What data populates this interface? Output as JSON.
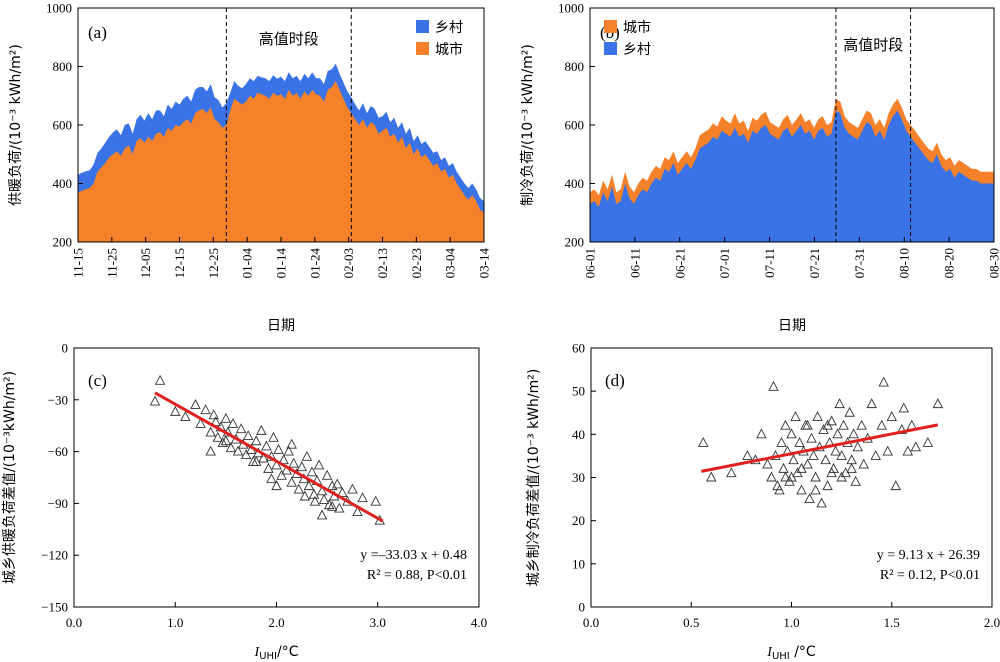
{
  "colors": {
    "urban": "#F5822A",
    "rural": "#3A73E6",
    "fit": "#E01F1F",
    "marker": "#333333"
  },
  "chart_data": [
    {
      "id": "a",
      "type": "area",
      "panel_label": "(a)",
      "xlabel": "日期",
      "ylabel": "供暖负荷/(10⁻³ kWh/m²)",
      "ylim": [
        200,
        1000
      ],
      "yticks": [
        200,
        400,
        600,
        800,
        1000
      ],
      "stack_order": [
        "城市",
        "乡村"
      ],
      "legend_items": [
        {
          "label": "乡村",
          "color_key": "rural"
        },
        {
          "label": "城市",
          "color_key": "urban"
        }
      ],
      "tick_labels": [
        "11-15",
        "11-25",
        "12-05",
        "12-15",
        "12-25",
        "01-04",
        "01-14",
        "01-24",
        "02-03",
        "02-13",
        "02-23",
        "03-04",
        "03-14"
      ],
      "annotation": "高值时段",
      "peak_start_index": 38,
      "peak_end_index": 70,
      "series": [
        {
          "name": "城市",
          "values": [
            370,
            375,
            380,
            385,
            400,
            440,
            455,
            470,
            490,
            500,
            510,
            495,
            520,
            530,
            500,
            545,
            555,
            540,
            560,
            545,
            570,
            575,
            560,
            590,
            580,
            600,
            595,
            610,
            620,
            605,
            640,
            650,
            655,
            640,
            660,
            620,
            610,
            590,
            600,
            650,
            690,
            680,
            670,
            680,
            700,
            690,
            710,
            705,
            700,
            690,
            710,
            700,
            705,
            690,
            720,
            700,
            710,
            690,
            715,
            700,
            720,
            705,
            700,
            680,
            720,
            730,
            750,
            720,
            690,
            660,
            640,
            620,
            600,
            620,
            590,
            610,
            600,
            570,
            580,
            590,
            560,
            570,
            540,
            560,
            520,
            540,
            500,
            520,
            490,
            500,
            480,
            460,
            470,
            440,
            450,
            420,
            430,
            400,
            380,
            360,
            345,
            360,
            340,
            310,
            300
          ]
        },
        {
          "name": "乡村",
          "values": [
            60,
            62,
            62,
            60,
            65,
            65,
            65,
            70,
            70,
            75,
            75,
            70,
            80,
            75,
            70,
            75,
            80,
            75,
            80,
            75,
            80,
            75,
            70,
            80,
            75,
            80,
            75,
            80,
            80,
            75,
            80,
            80,
            75,
            75,
            80,
            75,
            75,
            70,
            75,
            60,
            60,
            55,
            55,
            60,
            60,
            60,
            58,
            58,
            60,
            60,
            60,
            58,
            60,
            60,
            60,
            60,
            58,
            60,
            60,
            60,
            60,
            55,
            60,
            60,
            65,
            60,
            60,
            55,
            55,
            55,
            55,
            50,
            50,
            55,
            50,
            55,
            55,
            55,
            50,
            55,
            50,
            55,
            50,
            50,
            50,
            50,
            45,
            45,
            45,
            45,
            45,
            45,
            40,
            40,
            40,
            40,
            40,
            40,
            40,
            40,
            40,
            40,
            40,
            40,
            40
          ]
        }
      ]
    },
    {
      "id": "b",
      "type": "area",
      "panel_label": "(b)",
      "xlabel": "日期",
      "ylabel": "制冷负荷/(10⁻³ kWh/m²)",
      "ylim": [
        200,
        1000
      ],
      "yticks": [
        200,
        400,
        600,
        800,
        1000
      ],
      "stack_order": [
        "乡村",
        "城市"
      ],
      "legend_items": [
        {
          "label": "城市",
          "color_key": "urban"
        },
        {
          "label": "乡村",
          "color_key": "rural"
        }
      ],
      "tick_labels": [
        "06-01",
        "06-11",
        "06-21",
        "07-01",
        "07-11",
        "07-21",
        "07-31",
        "08-10",
        "08-20",
        "08-30"
      ],
      "annotation": "高值时段",
      "peak_start_index": 56,
      "peak_end_index": 73,
      "series": [
        {
          "name": "乡村",
          "values": [
            330,
            340,
            320,
            370,
            340,
            390,
            330,
            340,
            400,
            350,
            330,
            360,
            380,
            370,
            400,
            420,
            410,
            450,
            440,
            470,
            430,
            450,
            470,
            450,
            480,
            520,
            530,
            540,
            560,
            550,
            580,
            570,
            560,
            590,
            560,
            570,
            540,
            580,
            570,
            590,
            600,
            570,
            560,
            550,
            580,
            590,
            560,
            580,
            600,
            570,
            580,
            550,
            580,
            590,
            560,
            570,
            650,
            640,
            590,
            570,
            560,
            550,
            580,
            610,
            600,
            560,
            580,
            550,
            600,
            630,
            650,
            620,
            580,
            560,
            540,
            520,
            500,
            480,
            470,
            500,
            460,
            440,
            450,
            420,
            440,
            430,
            420,
            410,
            410,
            400,
            400,
            400,
            400
          ]
        },
        {
          "name": "城市",
          "values": [
            40,
            40,
            40,
            40,
            40,
            40,
            40,
            40,
            40,
            40,
            40,
            40,
            40,
            40,
            40,
            40,
            40,
            40,
            40,
            40,
            40,
            40,
            40,
            40,
            40,
            45,
            45,
            45,
            45,
            45,
            50,
            45,
            45,
            50,
            45,
            45,
            40,
            45,
            45,
            45,
            45,
            40,
            40,
            40,
            40,
            45,
            40,
            40,
            40,
            40,
            40,
            40,
            40,
            40,
            40,
            40,
            40,
            40,
            40,
            40,
            40,
            40,
            40,
            40,
            40,
            40,
            40,
            40,
            40,
            40,
            40,
            40,
            40,
            40,
            40,
            40,
            40,
            40,
            40,
            40,
            40,
            40,
            40,
            40,
            40,
            40,
            40,
            40,
            40,
            40,
            40,
            40,
            40
          ]
        }
      ]
    },
    {
      "id": "c",
      "type": "scatter",
      "panel_label": "(c)",
      "xlabel": "I_UHI/°C",
      "xlabel_main": "I",
      "xlabel_sub": "UHI",
      "xlabel_unit": "/°C",
      "ylabel": "城乡供暖负荷差值/(10⁻³kWh/m²)",
      "xlim": [
        0,
        4
      ],
      "ylim": [
        -150,
        0
      ],
      "xticks": [
        "0.0",
        "1.0",
        "2.0",
        "3.0",
        "4.0"
      ],
      "yticks": [
        "-150",
        "-120",
        "-90",
        "-60",
        "-30",
        "0"
      ],
      "fit": {
        "slope": -33.03,
        "intercept": 0.48,
        "x_range": [
          0.8,
          3.05
        ]
      },
      "equation_line1": "y =–33.03 x + 0.48",
      "equation_line2": "R² = 0.88, P<0.01",
      "points": [
        [
          0.8,
          -31
        ],
        [
          0.85,
          -19
        ],
        [
          1.0,
          -37
        ],
        [
          1.1,
          -40
        ],
        [
          1.2,
          -33
        ],
        [
          1.25,
          -44
        ],
        [
          1.3,
          -36
        ],
        [
          1.35,
          -49
        ],
        [
          1.38,
          -39
        ],
        [
          1.4,
          -43
        ],
        [
          1.42,
          -52
        ],
        [
          1.45,
          -46
        ],
        [
          1.47,
          -55
        ],
        [
          1.5,
          -41
        ],
        [
          1.52,
          -49
        ],
        [
          1.55,
          -58
        ],
        [
          1.57,
          -44
        ],
        [
          1.6,
          -53
        ],
        [
          1.62,
          -60
        ],
        [
          1.65,
          -47
        ],
        [
          1.67,
          -56
        ],
        [
          1.7,
          -62
        ],
        [
          1.72,
          -51
        ],
        [
          1.75,
          -59
        ],
        [
          1.77,
          -66
        ],
        [
          1.8,
          -54
        ],
        [
          1.82,
          -61
        ],
        [
          1.85,
          -48
        ],
        [
          1.87,
          -64
        ],
        [
          1.9,
          -57
        ],
        [
          1.92,
          -70
        ],
        [
          1.95,
          -63
        ],
        [
          1.97,
          -52
        ],
        [
          2.0,
          -68
        ],
        [
          2.02,
          -59
        ],
        [
          2.05,
          -74
        ],
        [
          2.07,
          -65
        ],
        [
          2.1,
          -71
        ],
        [
          2.12,
          -60
        ],
        [
          2.15,
          -78
        ],
        [
          2.17,
          -67
        ],
        [
          2.2,
          -73
        ],
        [
          2.22,
          -82
        ],
        [
          2.25,
          -69
        ],
        [
          2.27,
          -76
        ],
        [
          2.3,
          -63
        ],
        [
          2.32,
          -80
        ],
        [
          2.35,
          -72
        ],
        [
          2.37,
          -85
        ],
        [
          2.4,
          -77
        ],
        [
          2.42,
          -68
        ],
        [
          2.45,
          -83
        ],
        [
          2.47,
          -88
        ],
        [
          2.5,
          -74
        ],
        [
          2.52,
          -91
        ],
        [
          2.55,
          -80
        ],
        [
          2.57,
          -86
        ],
        [
          2.6,
          -79
        ],
        [
          2.62,
          -93
        ],
        [
          2.65,
          -84
        ],
        [
          2.7,
          -89
        ],
        [
          2.75,
          -82
        ],
        [
          2.8,
          -95
        ],
        [
          2.85,
          -87
        ],
        [
          2.98,
          -89
        ],
        [
          3.02,
          -100
        ],
        [
          2.45,
          -97
        ],
        [
          2.0,
          -80
        ],
        [
          1.35,
          -60
        ],
        [
          1.5,
          -54
        ],
        [
          1.8,
          -66
        ],
        [
          2.28,
          -86
        ],
        [
          2.38,
          -89
        ],
        [
          1.95,
          -76
        ],
        [
          2.15,
          -56
        ],
        [
          2.55,
          -92
        ]
      ]
    },
    {
      "id": "d",
      "type": "scatter",
      "panel_label": "(d)",
      "xlabel": "I_UHI /°C",
      "xlabel_main": "I",
      "xlabel_sub": "UHI",
      "xlabel_unit": " /°C",
      "ylabel": "城乡制冷负荷差值/(10⁻³ kWh/m²)",
      "xlim": [
        0,
        2
      ],
      "ylim": [
        0,
        60
      ],
      "xticks": [
        "0.0",
        "0.5",
        "1.0",
        "1.5",
        "2.0"
      ],
      "yticks": [
        "0",
        "10",
        "20",
        "30",
        "40",
        "50",
        "60"
      ],
      "fit": {
        "slope": 9.13,
        "intercept": 26.39,
        "x_range": [
          0.55,
          1.73
        ]
      },
      "equation_line1": "y = 9.13 x + 26.39",
      "equation_line2": "R² = 0.12, P<0.01",
      "points": [
        [
          0.56,
          38
        ],
        [
          0.6,
          30
        ],
        [
          0.7,
          31
        ],
        [
          0.78,
          35
        ],
        [
          0.82,
          34
        ],
        [
          0.85,
          40
        ],
        [
          0.88,
          33
        ],
        [
          0.9,
          30
        ],
        [
          0.91,
          51
        ],
        [
          0.92,
          35
        ],
        [
          0.93,
          28
        ],
        [
          0.95,
          38
        ],
        [
          0.96,
          32
        ],
        [
          0.97,
          42
        ],
        [
          0.98,
          36
        ],
        [
          0.99,
          29
        ],
        [
          1.0,
          40
        ],
        [
          1.01,
          34
        ],
        [
          1.02,
          44
        ],
        [
          1.03,
          31
        ],
        [
          1.04,
          38
        ],
        [
          1.05,
          27
        ],
        [
          1.06,
          36
        ],
        [
          1.07,
          42
        ],
        [
          1.08,
          33
        ],
        [
          1.09,
          25
        ],
        [
          1.1,
          39
        ],
        [
          1.11,
          35
        ],
        [
          1.12,
          30
        ],
        [
          1.13,
          44
        ],
        [
          1.14,
          37
        ],
        [
          1.15,
          24
        ],
        [
          1.16,
          41
        ],
        [
          1.17,
          34
        ],
        [
          1.18,
          28
        ],
        [
          1.19,
          38
        ],
        [
          1.2,
          43
        ],
        [
          1.21,
          32
        ],
        [
          1.22,
          36
        ],
        [
          1.23,
          40
        ],
        [
          1.24,
          47
        ],
        [
          1.25,
          35
        ],
        [
          1.26,
          42
        ],
        [
          1.27,
          31
        ],
        [
          1.28,
          38
        ],
        [
          1.29,
          45
        ],
        [
          1.3,
          34
        ],
        [
          1.31,
          40
        ],
        [
          1.32,
          29
        ],
        [
          1.33,
          37
        ],
        [
          1.35,
          42
        ],
        [
          1.36,
          33
        ],
        [
          1.38,
          39
        ],
        [
          1.4,
          47
        ],
        [
          1.42,
          35
        ],
        [
          1.45,
          42
        ],
        [
          1.46,
          52
        ],
        [
          1.48,
          36
        ],
        [
          1.5,
          44
        ],
        [
          1.52,
          28
        ],
        [
          1.55,
          41
        ],
        [
          1.56,
          46
        ],
        [
          1.58,
          36
        ],
        [
          1.6,
          42
        ],
        [
          1.62,
          37
        ],
        [
          1.68,
          38
        ],
        [
          1.73,
          47
        ],
        [
          0.94,
          27
        ],
        [
          1.0,
          30
        ],
        [
          1.05,
          32
        ],
        [
          1.12,
          27
        ],
        [
          1.2,
          31
        ],
        [
          1.25,
          30
        ],
        [
          1.3,
          32
        ],
        [
          0.97,
          30
        ],
        [
          1.08,
          42
        ],
        [
          1.18,
          42
        ]
      ]
    }
  ]
}
